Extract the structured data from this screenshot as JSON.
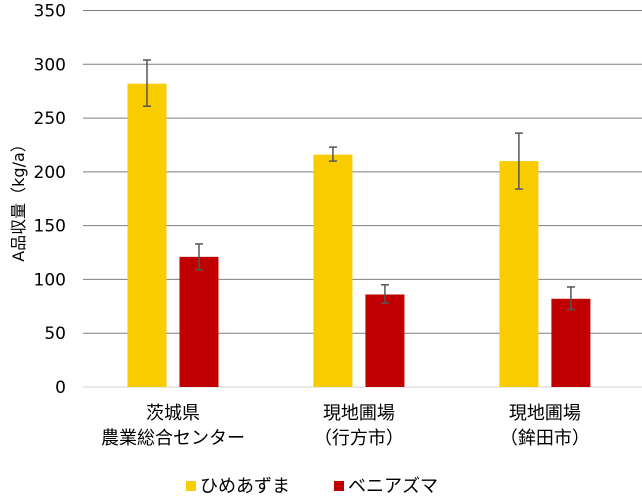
{
  "chart_data": {
    "type": "bar",
    "ylabel": "A品収量（kg/a）",
    "ylim": [
      0,
      350
    ],
    "yticks": [
      0,
      50,
      100,
      150,
      200,
      250,
      300,
      350
    ],
    "grid": true,
    "legend_placement": "bottom",
    "categories": [
      [
        "茨城県",
        "農業総合センター"
      ],
      [
        "現地圃場",
        "（行方市）"
      ],
      [
        "現地圃場",
        "（鉾田市）"
      ]
    ],
    "series": [
      {
        "name": "ひめあずま",
        "color": "#f9cc00",
        "values": [
          282,
          216,
          210
        ],
        "err_low": [
          261,
          210,
          184
        ],
        "err_high": [
          304,
          223,
          236
        ]
      },
      {
        "name": "ベニアズマ",
        "color": "#c00000",
        "values": [
          121,
          86,
          82
        ],
        "err_low": [
          109,
          78,
          72
        ],
        "err_high": [
          133,
          95,
          93
        ]
      }
    ]
  }
}
